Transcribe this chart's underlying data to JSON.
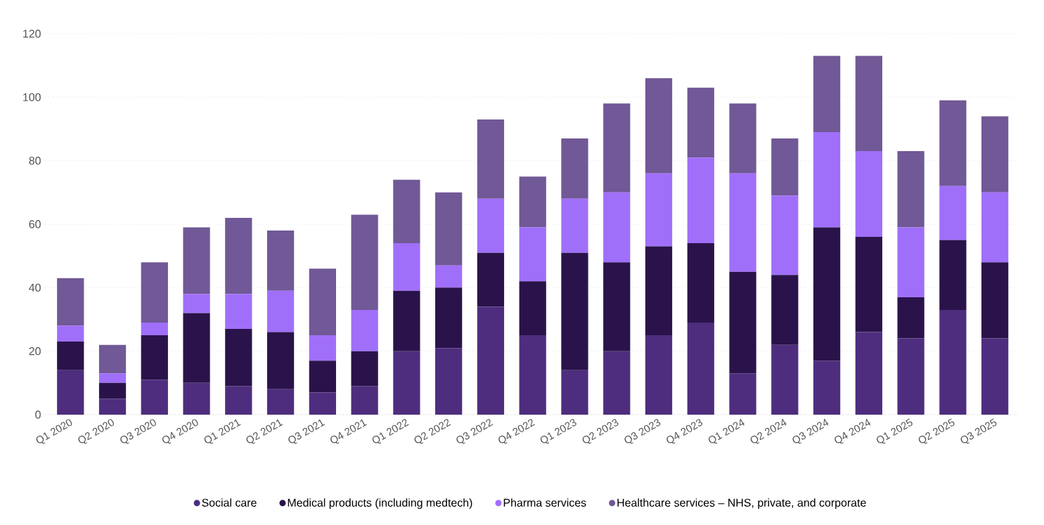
{
  "chart_data": {
    "type": "bar",
    "stacked": true,
    "categories": [
      "Q1 2020",
      "Q2 2020",
      "Q3 2020",
      "Q4 2020",
      "Q1 2021",
      "Q2 2021",
      "Q3 2021",
      "Q4 2021",
      "Q1 2022",
      "Q2 2022",
      "Q3 2022",
      "Q4 2022",
      "Q1 2023",
      "Q2 2023",
      "Q3 2023",
      "Q4 2023",
      "Q1 2024",
      "Q2 2024",
      "Q3 2024",
      "Q4 2024",
      "Q1 2025",
      "Q2 2025",
      "Q3 2025"
    ],
    "series": [
      {
        "name": "Social care",
        "color": "#4e2d7e",
        "values": [
          14,
          5,
          11,
          10,
          9,
          8,
          7,
          9,
          20,
          21,
          34,
          25,
          14,
          20,
          25,
          29,
          13,
          22,
          17,
          26,
          24,
          33,
          24
        ]
      },
      {
        "name": "Medical products (including medtech)",
        "color": "#2a134a",
        "values": [
          9,
          5,
          14,
          22,
          18,
          18,
          10,
          11,
          19,
          19,
          17,
          17,
          37,
          28,
          28,
          25,
          32,
          22,
          42,
          30,
          13,
          22,
          24
        ]
      },
      {
        "name": "Pharma services",
        "color": "#a06ffa",
        "values": [
          5,
          3,
          4,
          6,
          11,
          13,
          8,
          13,
          15,
          7,
          17,
          17,
          17,
          22,
          23,
          27,
          31,
          25,
          30,
          27,
          22,
          17,
          22
        ]
      },
      {
        "name": "Healthcare services – NHS, private, and corporate",
        "color": "#715896",
        "values": [
          15,
          9,
          19,
          21,
          24,
          19,
          21,
          30,
          20,
          23,
          25,
          16,
          19,
          28,
          30,
          22,
          22,
          18,
          24,
          30,
          24,
          27,
          24
        ]
      }
    ],
    "ylim": [
      0,
      120
    ],
    "yticks": [
      0,
      20,
      40,
      60,
      80,
      100,
      120
    ],
    "grid": "y",
    "legend": "bottom"
  }
}
